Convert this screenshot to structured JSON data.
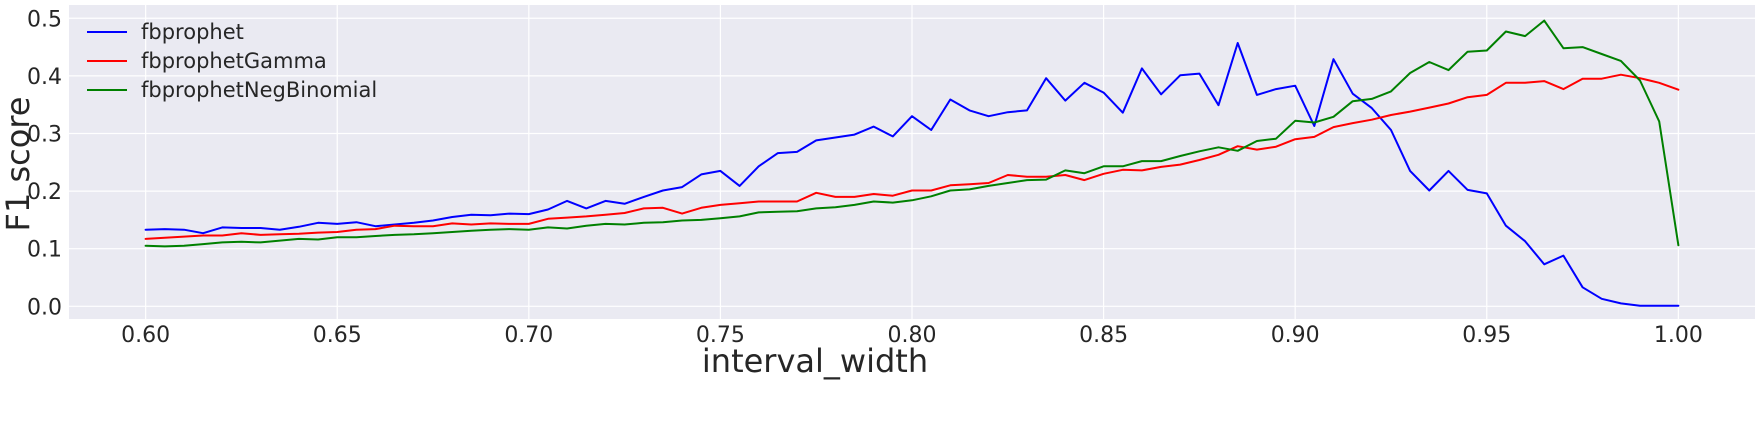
{
  "chart_data": {
    "type": "line",
    "xlabel": "interval_width",
    "ylabel": "F1 score",
    "xlim": [
      0.58,
      1.02
    ],
    "ylim": [
      -0.022,
      0.523
    ],
    "grid": true,
    "legend_position": "top-left",
    "x_ticks": [
      0.6,
      0.65,
      0.7,
      0.75,
      0.8,
      0.85,
      0.9,
      0.95,
      1.0
    ],
    "x_tick_labels": [
      "0.60",
      "0.65",
      "0.70",
      "0.75",
      "0.80",
      "0.85",
      "0.90",
      "0.95",
      "1.00"
    ],
    "y_ticks": [
      0.0,
      0.1,
      0.2,
      0.3,
      0.4,
      0.5
    ],
    "y_tick_labels": [
      "0.0",
      "0.1",
      "0.2",
      "0.3",
      "0.4",
      "0.5"
    ],
    "x": [
      0.6,
      0.605,
      0.61,
      0.615,
      0.62,
      0.625,
      0.63,
      0.635,
      0.64,
      0.645,
      0.65,
      0.655,
      0.66,
      0.665,
      0.67,
      0.675,
      0.68,
      0.685,
      0.69,
      0.695,
      0.7,
      0.705,
      0.71,
      0.715,
      0.72,
      0.725,
      0.73,
      0.735,
      0.74,
      0.745,
      0.75,
      0.755,
      0.76,
      0.765,
      0.77,
      0.775,
      0.78,
      0.785,
      0.79,
      0.795,
      0.8,
      0.805,
      0.81,
      0.815,
      0.82,
      0.825,
      0.83,
      0.835,
      0.84,
      0.845,
      0.85,
      0.855,
      0.86,
      0.865,
      0.87,
      0.875,
      0.88,
      0.885,
      0.89,
      0.895,
      0.9,
      0.905,
      0.91,
      0.915,
      0.92,
      0.925,
      0.93,
      0.935,
      0.94,
      0.945,
      0.95,
      0.955,
      0.96,
      0.965,
      0.97,
      0.975,
      0.98,
      0.985,
      0.99,
      0.995,
      1.0
    ],
    "series": [
      {
        "name": "fbprophet",
        "color": "#0000ff",
        "values": [
          0.133,
          0.134,
          0.133,
          0.127,
          0.137,
          0.136,
          0.136,
          0.133,
          0.138,
          0.145,
          0.143,
          0.146,
          0.139,
          0.142,
          0.145,
          0.149,
          0.155,
          0.159,
          0.158,
          0.161,
          0.16,
          0.168,
          0.183,
          0.17,
          0.183,
          0.178,
          0.19,
          0.201,
          0.207,
          0.229,
          0.235,
          0.209,
          0.243,
          0.266,
          0.268,
          0.288,
          0.293,
          0.298,
          0.312,
          0.295,
          0.33,
          0.306,
          0.359,
          0.34,
          0.33,
          0.337,
          0.34,
          0.396,
          0.357,
          0.388,
          0.371,
          0.336,
          0.413,
          0.368,
          0.401,
          0.404,
          0.349,
          0.457,
          0.367,
          0.377,
          0.383,
          0.313,
          0.429,
          0.369,
          0.344,
          0.306,
          0.235,
          0.201,
          0.235,
          0.202,
          0.196,
          0.14,
          0.113,
          0.073,
          0.088,
          0.033,
          0.013,
          0.005,
          0.001,
          0.001,
          0.001
        ]
      },
      {
        "name": "fbprophetGamma",
        "color": "#ff0000",
        "values": [
          0.117,
          0.119,
          0.121,
          0.123,
          0.123,
          0.127,
          0.124,
          0.125,
          0.126,
          0.128,
          0.129,
          0.133,
          0.134,
          0.14,
          0.139,
          0.139,
          0.144,
          0.142,
          0.144,
          0.143,
          0.143,
          0.152,
          0.154,
          0.156,
          0.159,
          0.162,
          0.17,
          0.171,
          0.161,
          0.171,
          0.176,
          0.179,
          0.182,
          0.182,
          0.182,
          0.197,
          0.19,
          0.19,
          0.195,
          0.192,
          0.201,
          0.201,
          0.21,
          0.212,
          0.214,
          0.228,
          0.225,
          0.225,
          0.228,
          0.219,
          0.23,
          0.237,
          0.236,
          0.242,
          0.246,
          0.254,
          0.263,
          0.278,
          0.272,
          0.277,
          0.29,
          0.294,
          0.311,
          0.318,
          0.324,
          0.332,
          0.338,
          0.345,
          0.352,
          0.363,
          0.367,
          0.388,
          0.388,
          0.391,
          0.377,
          0.395,
          0.395,
          0.402,
          0.396,
          0.388,
          0.376
        ]
      },
      {
        "name": "fbprophetNegBinomial",
        "color": "#008000",
        "values": [
          0.105,
          0.104,
          0.105,
          0.108,
          0.111,
          0.112,
          0.111,
          0.114,
          0.117,
          0.116,
          0.12,
          0.12,
          0.122,
          0.124,
          0.125,
          0.127,
          0.129,
          0.131,
          0.133,
          0.134,
          0.133,
          0.137,
          0.135,
          0.14,
          0.143,
          0.142,
          0.145,
          0.146,
          0.149,
          0.15,
          0.153,
          0.156,
          0.163,
          0.164,
          0.165,
          0.17,
          0.172,
          0.176,
          0.182,
          0.18,
          0.184,
          0.191,
          0.201,
          0.203,
          0.209,
          0.214,
          0.219,
          0.22,
          0.236,
          0.231,
          0.243,
          0.243,
          0.252,
          0.252,
          0.261,
          0.269,
          0.276,
          0.27,
          0.287,
          0.291,
          0.322,
          0.319,
          0.329,
          0.356,
          0.36,
          0.373,
          0.405,
          0.424,
          0.41,
          0.442,
          0.444,
          0.477,
          0.469,
          0.496,
          0.448,
          0.45,
          0.438,
          0.426,
          0.392,
          0.321,
          0.106
        ]
      }
    ]
  }
}
